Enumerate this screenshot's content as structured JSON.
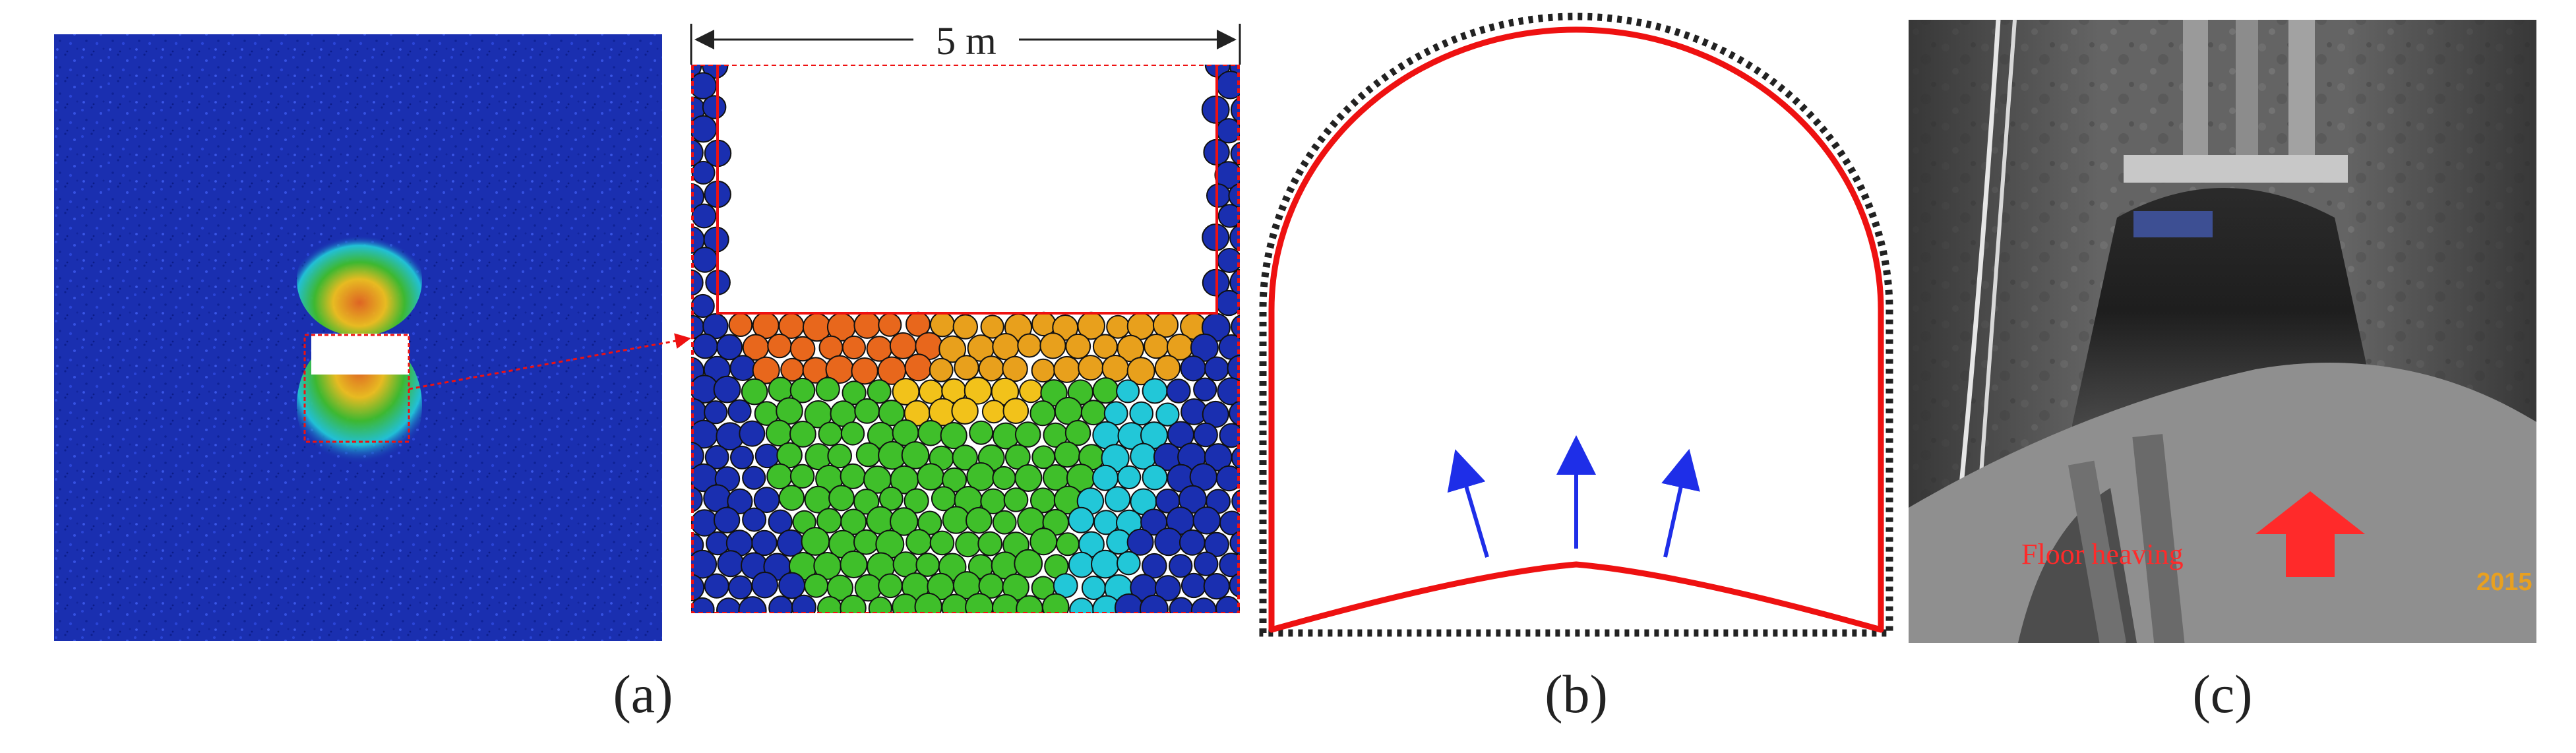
{
  "panels": {
    "a": {
      "caption": "(a)",
      "dimension_label": "5 m"
    },
    "b": {
      "caption": "(b)"
    },
    "c": {
      "caption": "(c)",
      "annotation": "Floor heaving",
      "year_stamp": "2015"
    }
  },
  "colors": {
    "particle_base": "#1a2fb0",
    "disturbed_high": "#e8671c",
    "disturbed_mid": "#e8a01c",
    "disturbed_low": "#3fbf2a",
    "disturbed_cyan": "#22c7d8",
    "outline_red": "#ee1111",
    "arrow_blue": "#1e2ee8",
    "dotted_boundary": "#222222",
    "photo_annotation": "#ff2a2a",
    "photo_stamp": "#e8a020"
  },
  "icons": {
    "heave_arrows": "arrow-up-icon",
    "photo_arrow": "arrow-up-icon",
    "dimension": "double-arrow-icon"
  }
}
